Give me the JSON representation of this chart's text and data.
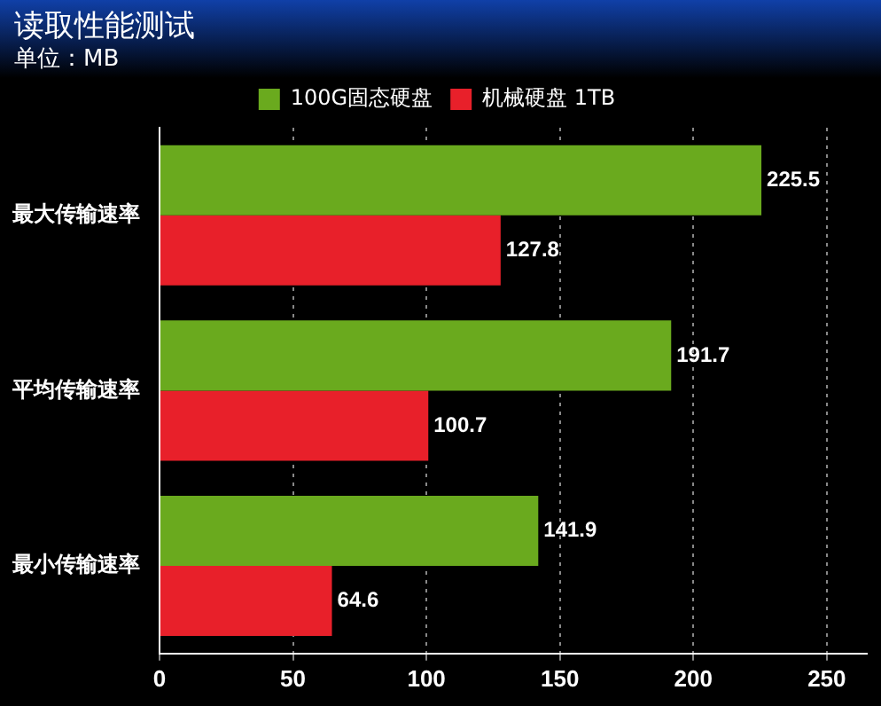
{
  "chart_data": {
    "type": "bar",
    "orientation": "horizontal",
    "title": "读取性能测试",
    "subtitle": "单位：MB",
    "categories": [
      "最大传输速率",
      "平均传输速率",
      "最小传输速率"
    ],
    "series": [
      {
        "name": "100G固态硬盘",
        "color": "#6aaa1e",
        "values": [
          225.5,
          191.7,
          141.9
        ]
      },
      {
        "name": "机械硬盘 1TB",
        "color": "#e8202a",
        "values": [
          127.8,
          100.7,
          64.6
        ]
      }
    ],
    "xlim": [
      0,
      265
    ],
    "xticks": [
      0,
      50,
      100,
      150,
      200,
      250
    ],
    "grid": "x",
    "legend": "top",
    "data_labels": true
  }
}
